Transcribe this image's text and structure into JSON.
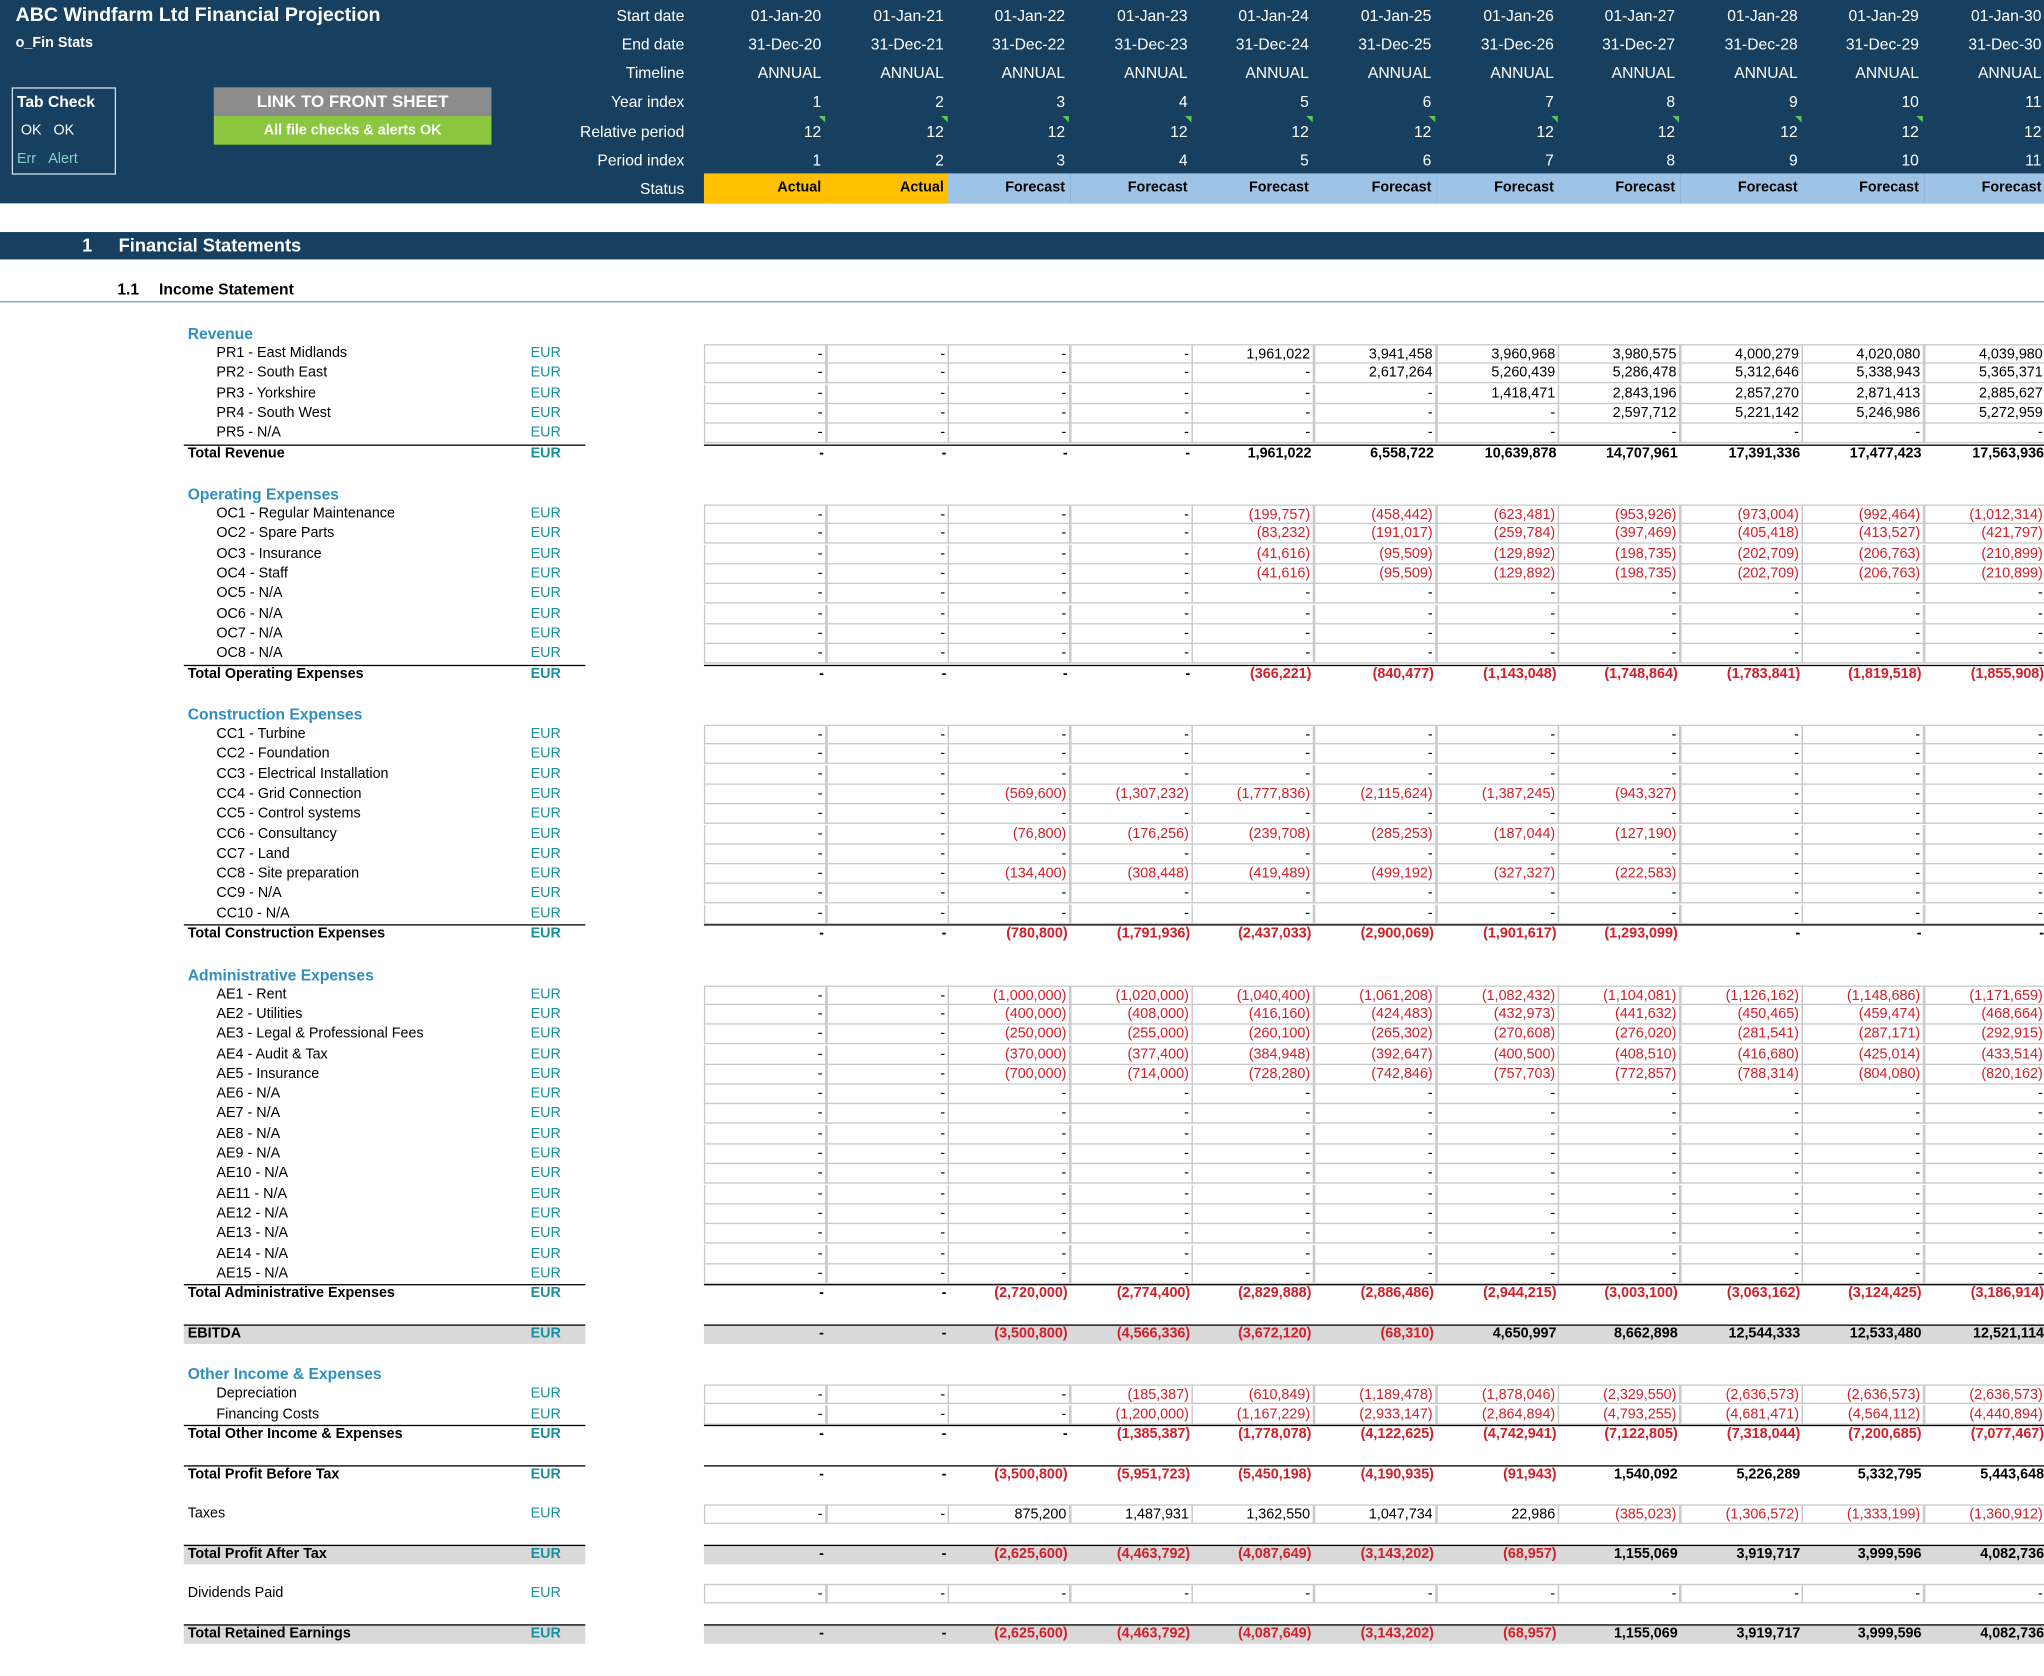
{
  "title": "ABC Windfarm Ltd Financial Projection",
  "subtitle": "o_Fin Stats",
  "tab_check": {
    "title": "Tab Check",
    "ok1": "OK",
    "ok2": "OK",
    "err": "Err",
    "alert": "Alert"
  },
  "link_button": "LINK TO FRONT SHEET",
  "checks_status": "All file checks & alerts OK",
  "colors": {
    "header_bg": "#173f5f",
    "actual": "#ffc000",
    "forecast": "#9dc3e6",
    "negative": "#d0202a",
    "group_heading": "#2f8fbf",
    "unit": "#1a8fa0"
  },
  "timeline_labels": {
    "start_date": "Start date",
    "end_date": "End date",
    "timeline": "Timeline",
    "year_index": "Year index",
    "relative_period": "Relative period",
    "period_index": "Period index",
    "status": "Status"
  },
  "columns": [
    {
      "start": "01-Jan-20",
      "end": "31-Dec-20",
      "timeline": "ANNUAL",
      "year": "1",
      "rel": "12",
      "period": "1",
      "status": "Actual"
    },
    {
      "start": "01-Jan-21",
      "end": "31-Dec-21",
      "timeline": "ANNUAL",
      "year": "2",
      "rel": "12",
      "period": "2",
      "status": "Actual"
    },
    {
      "start": "01-Jan-22",
      "end": "31-Dec-22",
      "timeline": "ANNUAL",
      "year": "3",
      "rel": "12",
      "period": "3",
      "status": "Forecast"
    },
    {
      "start": "01-Jan-23",
      "end": "31-Dec-23",
      "timeline": "ANNUAL",
      "year": "4",
      "rel": "12",
      "period": "4",
      "status": "Forecast"
    },
    {
      "start": "01-Jan-24",
      "end": "31-Dec-24",
      "timeline": "ANNUAL",
      "year": "5",
      "rel": "12",
      "period": "5",
      "status": "Forecast"
    },
    {
      "start": "01-Jan-25",
      "end": "31-Dec-25",
      "timeline": "ANNUAL",
      "year": "6",
      "rel": "12",
      "period": "6",
      "status": "Forecast"
    },
    {
      "start": "01-Jan-26",
      "end": "31-Dec-26",
      "timeline": "ANNUAL",
      "year": "7",
      "rel": "12",
      "period": "7",
      "status": "Forecast"
    },
    {
      "start": "01-Jan-27",
      "end": "31-Dec-27",
      "timeline": "ANNUAL",
      "year": "8",
      "rel": "12",
      "period": "8",
      "status": "Forecast"
    },
    {
      "start": "01-Jan-28",
      "end": "31-Dec-28",
      "timeline": "ANNUAL",
      "year": "9",
      "rel": "12",
      "period": "9",
      "status": "Forecast"
    },
    {
      "start": "01-Jan-29",
      "end": "31-Dec-29",
      "timeline": "ANNUAL",
      "year": "10",
      "rel": "12",
      "period": "10",
      "status": "Forecast"
    },
    {
      "start": "01-Jan-30",
      "end": "31-Dec-30",
      "timeline": "ANNUAL",
      "year": "11",
      "rel": "12",
      "period": "11",
      "status": "Forecast"
    }
  ],
  "section": {
    "number": "1",
    "title": "Financial Statements"
  },
  "subsection": {
    "number": "1.1",
    "title": "Income Statement"
  },
  "rows": [
    {
      "type": "heading",
      "label": "Revenue"
    },
    {
      "type": "item",
      "label": "PR1 - East Midlands",
      "unit": "EUR",
      "values": [
        "-",
        "-",
        "-",
        "-",
        "1,961,022",
        "3,941,458",
        "3,960,968",
        "3,980,575",
        "4,000,279",
        "4,020,080",
        "4,039,980"
      ]
    },
    {
      "type": "item",
      "label": "PR2 - South East",
      "unit": "EUR",
      "values": [
        "-",
        "-",
        "-",
        "-",
        "-",
        "2,617,264",
        "5,260,439",
        "5,286,478",
        "5,312,646",
        "5,338,943",
        "5,365,371"
      ]
    },
    {
      "type": "item",
      "label": "PR3 - Yorkshire",
      "unit": "EUR",
      "values": [
        "-",
        "-",
        "-",
        "-",
        "-",
        "-",
        "1,418,471",
        "2,843,196",
        "2,857,270",
        "2,871,413",
        "2,885,627"
      ]
    },
    {
      "type": "item",
      "label": "PR4 - South West",
      "unit": "EUR",
      "values": [
        "-",
        "-",
        "-",
        "-",
        "-",
        "-",
        "-",
        "2,597,712",
        "5,221,142",
        "5,246,986",
        "5,272,959"
      ]
    },
    {
      "type": "item",
      "label": "PR5 - N/A",
      "unit": "EUR",
      "values": [
        "-",
        "-",
        "-",
        "-",
        "-",
        "-",
        "-",
        "-",
        "-",
        "-",
        "-"
      ]
    },
    {
      "type": "total",
      "label": "Total Revenue",
      "unit": "EUR",
      "values": [
        "-",
        "-",
        "-",
        "-",
        "1,961,022",
        "6,558,722",
        "10,639,878",
        "14,707,961",
        "17,391,336",
        "17,477,423",
        "17,563,936"
      ]
    },
    {
      "type": "gap"
    },
    {
      "type": "heading",
      "label": "Operating Expenses"
    },
    {
      "type": "item",
      "label": "OC1 - Regular Maintenance",
      "unit": "EUR",
      "values": [
        "-",
        "-",
        "-",
        "-",
        "(199,757)",
        "(458,442)",
        "(623,481)",
        "(953,926)",
        "(973,004)",
        "(992,464)",
        "(1,012,314)"
      ]
    },
    {
      "type": "item",
      "label": "OC2 - Spare Parts",
      "unit": "EUR",
      "values": [
        "-",
        "-",
        "-",
        "-",
        "(83,232)",
        "(191,017)",
        "(259,784)",
        "(397,469)",
        "(405,418)",
        "(413,527)",
        "(421,797)"
      ]
    },
    {
      "type": "item",
      "label": "OC3 - Insurance",
      "unit": "EUR",
      "values": [
        "-",
        "-",
        "-",
        "-",
        "(41,616)",
        "(95,509)",
        "(129,892)",
        "(198,735)",
        "(202,709)",
        "(206,763)",
        "(210,899)"
      ]
    },
    {
      "type": "item",
      "label": "OC4 - Staff",
      "unit": "EUR",
      "values": [
        "-",
        "-",
        "-",
        "-",
        "(41,616)",
        "(95,509)",
        "(129,892)",
        "(198,735)",
        "(202,709)",
        "(206,763)",
        "(210,899)"
      ]
    },
    {
      "type": "item",
      "label": "OC5 - N/A",
      "unit": "EUR",
      "values": [
        "-",
        "-",
        "-",
        "-",
        "-",
        "-",
        "-",
        "-",
        "-",
        "-",
        "-"
      ]
    },
    {
      "type": "item",
      "label": "OC6 - N/A",
      "unit": "EUR",
      "values": [
        "-",
        "-",
        "-",
        "-",
        "-",
        "-",
        "-",
        "-",
        "-",
        "-",
        "-"
      ]
    },
    {
      "type": "item",
      "label": "OC7 - N/A",
      "unit": "EUR",
      "values": [
        "-",
        "-",
        "-",
        "-",
        "-",
        "-",
        "-",
        "-",
        "-",
        "-",
        "-"
      ]
    },
    {
      "type": "item",
      "label": "OC8 - N/A",
      "unit": "EUR",
      "values": [
        "-",
        "-",
        "-",
        "-",
        "-",
        "-",
        "-",
        "-",
        "-",
        "-",
        "-"
      ]
    },
    {
      "type": "total",
      "label": "Total Operating Expenses",
      "unit": "EUR",
      "values": [
        "-",
        "-",
        "-",
        "-",
        "(366,221)",
        "(840,477)",
        "(1,143,048)",
        "(1,748,864)",
        "(1,783,841)",
        "(1,819,518)",
        "(1,855,908)"
      ]
    },
    {
      "type": "gap"
    },
    {
      "type": "heading",
      "label": "Construction Expenses"
    },
    {
      "type": "item",
      "label": "CC1 - Turbine",
      "unit": "EUR",
      "values": [
        "-",
        "-",
        "-",
        "-",
        "-",
        "-",
        "-",
        "-",
        "-",
        "-",
        "-"
      ]
    },
    {
      "type": "item",
      "label": "CC2 - Foundation",
      "unit": "EUR",
      "values": [
        "-",
        "-",
        "-",
        "-",
        "-",
        "-",
        "-",
        "-",
        "-",
        "-",
        "-"
      ]
    },
    {
      "type": "item",
      "label": "CC3 - Electrical Installation",
      "unit": "EUR",
      "values": [
        "-",
        "-",
        "-",
        "-",
        "-",
        "-",
        "-",
        "-",
        "-",
        "-",
        "-"
      ]
    },
    {
      "type": "item",
      "label": "CC4 - Grid Connection",
      "unit": "EUR",
      "values": [
        "-",
        "-",
        "(569,600)",
        "(1,307,232)",
        "(1,777,836)",
        "(2,115,624)",
        "(1,387,245)",
        "(943,327)",
        "-",
        "-",
        "-"
      ]
    },
    {
      "type": "item",
      "label": "CC5 - Control systems",
      "unit": "EUR",
      "values": [
        "-",
        "-",
        "-",
        "-",
        "-",
        "-",
        "-",
        "-",
        "-",
        "-",
        "-"
      ]
    },
    {
      "type": "item",
      "label": "CC6 - Consultancy",
      "unit": "EUR",
      "values": [
        "-",
        "-",
        "(76,800)",
        "(176,256)",
        "(239,708)",
        "(285,253)",
        "(187,044)",
        "(127,190)",
        "-",
        "-",
        "-"
      ]
    },
    {
      "type": "item",
      "label": "CC7 - Land",
      "unit": "EUR",
      "values": [
        "-",
        "-",
        "-",
        "-",
        "-",
        "-",
        "-",
        "-",
        "-",
        "-",
        "-"
      ]
    },
    {
      "type": "item",
      "label": "CC8 - Site preparation",
      "unit": "EUR",
      "values": [
        "-",
        "-",
        "(134,400)",
        "(308,448)",
        "(419,489)",
        "(499,192)",
        "(327,327)",
        "(222,583)",
        "-",
        "-",
        "-"
      ]
    },
    {
      "type": "item",
      "label": "CC9 - N/A",
      "unit": "EUR",
      "values": [
        "-",
        "-",
        "-",
        "-",
        "-",
        "-",
        "-",
        "-",
        "-",
        "-",
        "-"
      ]
    },
    {
      "type": "item",
      "label": "CC10 - N/A",
      "unit": "EUR",
      "values": [
        "-",
        "-",
        "-",
        "-",
        "-",
        "-",
        "-",
        "-",
        "-",
        "-",
        "-"
      ]
    },
    {
      "type": "total",
      "label": "Total Construction Expenses",
      "unit": "EUR",
      "values": [
        "-",
        "-",
        "(780,800)",
        "(1,791,936)",
        "(2,437,033)",
        "(2,900,069)",
        "(1,901,617)",
        "(1,293,099)",
        "-",
        "-",
        "-"
      ]
    },
    {
      "type": "gap"
    },
    {
      "type": "heading",
      "label": "Administrative Expenses"
    },
    {
      "type": "item",
      "label": "AE1 - Rent",
      "unit": "EUR",
      "values": [
        "-",
        "-",
        "(1,000,000)",
        "(1,020,000)",
        "(1,040,400)",
        "(1,061,208)",
        "(1,082,432)",
        "(1,104,081)",
        "(1,126,162)",
        "(1,148,686)",
        "(1,171,659)"
      ]
    },
    {
      "type": "item",
      "label": "AE2 - Utilities",
      "unit": "EUR",
      "values": [
        "-",
        "-",
        "(400,000)",
        "(408,000)",
        "(416,160)",
        "(424,483)",
        "(432,973)",
        "(441,632)",
        "(450,465)",
        "(459,474)",
        "(468,664)"
      ]
    },
    {
      "type": "item",
      "label": "AE3 - Legal & Professional Fees",
      "unit": "EUR",
      "values": [
        "-",
        "-",
        "(250,000)",
        "(255,000)",
        "(260,100)",
        "(265,302)",
        "(270,608)",
        "(276,020)",
        "(281,541)",
        "(287,171)",
        "(292,915)"
      ]
    },
    {
      "type": "item",
      "label": "AE4 - Audit & Tax",
      "unit": "EUR",
      "values": [
        "-",
        "-",
        "(370,000)",
        "(377,400)",
        "(384,948)",
        "(392,647)",
        "(400,500)",
        "(408,510)",
        "(416,680)",
        "(425,014)",
        "(433,514)"
      ]
    },
    {
      "type": "item",
      "label": "AE5 - Insurance",
      "unit": "EUR",
      "values": [
        "-",
        "-",
        "(700,000)",
        "(714,000)",
        "(728,280)",
        "(742,846)",
        "(757,703)",
        "(772,857)",
        "(788,314)",
        "(804,080)",
        "(820,162)"
      ]
    },
    {
      "type": "item",
      "label": "AE6 - N/A",
      "unit": "EUR",
      "values": [
        "-",
        "-",
        "-",
        "-",
        "-",
        "-",
        "-",
        "-",
        "-",
        "-",
        "-"
      ]
    },
    {
      "type": "item",
      "label": "AE7 - N/A",
      "unit": "EUR",
      "values": [
        "-",
        "-",
        "-",
        "-",
        "-",
        "-",
        "-",
        "-",
        "-",
        "-",
        "-"
      ]
    },
    {
      "type": "item",
      "label": "AE8 - N/A",
      "unit": "EUR",
      "values": [
        "-",
        "-",
        "-",
        "-",
        "-",
        "-",
        "-",
        "-",
        "-",
        "-",
        "-"
      ]
    },
    {
      "type": "item",
      "label": "AE9 - N/A",
      "unit": "EUR",
      "values": [
        "-",
        "-",
        "-",
        "-",
        "-",
        "-",
        "-",
        "-",
        "-",
        "-",
        "-"
      ]
    },
    {
      "type": "item",
      "label": "AE10 - N/A",
      "unit": "EUR",
      "values": [
        "-",
        "-",
        "-",
        "-",
        "-",
        "-",
        "-",
        "-",
        "-",
        "-",
        "-"
      ]
    },
    {
      "type": "item",
      "label": "AE11 - N/A",
      "unit": "EUR",
      "values": [
        "-",
        "-",
        "-",
        "-",
        "-",
        "-",
        "-",
        "-",
        "-",
        "-",
        "-"
      ]
    },
    {
      "type": "item",
      "label": "AE12 - N/A",
      "unit": "EUR",
      "values": [
        "-",
        "-",
        "-",
        "-",
        "-",
        "-",
        "-",
        "-",
        "-",
        "-",
        "-"
      ]
    },
    {
      "type": "item",
      "label": "AE13 - N/A",
      "unit": "EUR",
      "values": [
        "-",
        "-",
        "-",
        "-",
        "-",
        "-",
        "-",
        "-",
        "-",
        "-",
        "-"
      ]
    },
    {
      "type": "item",
      "label": "AE14 - N/A",
      "unit": "EUR",
      "values": [
        "-",
        "-",
        "-",
        "-",
        "-",
        "-",
        "-",
        "-",
        "-",
        "-",
        "-"
      ]
    },
    {
      "type": "item",
      "label": "AE15 - N/A",
      "unit": "EUR",
      "values": [
        "-",
        "-",
        "-",
        "-",
        "-",
        "-",
        "-",
        "-",
        "-",
        "-",
        "-"
      ]
    },
    {
      "type": "total",
      "label": "Total Administrative Expenses",
      "unit": "EUR",
      "values": [
        "-",
        "-",
        "(2,720,000)",
        "(2,774,400)",
        "(2,829,888)",
        "(2,886,486)",
        "(2,944,215)",
        "(3,003,100)",
        "(3,063,162)",
        "(3,124,425)",
        "(3,186,914)"
      ]
    },
    {
      "type": "gap"
    },
    {
      "type": "grey",
      "label": "EBITDA",
      "unit": "EUR",
      "values": [
        "-",
        "-",
        "(3,500,800)",
        "(4,566,336)",
        "(3,672,120)",
        "(68,310)",
        "4,650,997",
        "8,662,898",
        "12,544,333",
        "12,533,480",
        "12,521,114"
      ]
    },
    {
      "type": "gap"
    },
    {
      "type": "heading",
      "label": "Other Income & Expenses"
    },
    {
      "type": "item",
      "label": "Depreciation",
      "unit": "EUR",
      "values": [
        "-",
        "-",
        "-",
        "(185,387)",
        "(610,849)",
        "(1,189,478)",
        "(1,878,046)",
        "(2,329,550)",
        "(2,636,573)",
        "(2,636,573)",
        "(2,636,573)"
      ]
    },
    {
      "type": "item",
      "label": "Financing Costs",
      "unit": "EUR",
      "values": [
        "-",
        "-",
        "-",
        "(1,200,000)",
        "(1,167,229)",
        "(2,933,147)",
        "(2,864,894)",
        "(4,793,255)",
        "(4,681,471)",
        "(4,564,112)",
        "(4,440,894)"
      ]
    },
    {
      "type": "total",
      "label": "Total Other Income & Expenses",
      "unit": "EUR",
      "values": [
        "-",
        "-",
        "-",
        "(1,385,387)",
        "(1,778,078)",
        "(4,122,625)",
        "(4,742,941)",
        "(7,122,805)",
        "(7,318,044)",
        "(7,200,685)",
        "(7,077,467)"
      ]
    },
    {
      "type": "gap"
    },
    {
      "type": "total",
      "label": "Total Profit Before Tax",
      "unit": "EUR",
      "values": [
        "-",
        "-",
        "(3,500,800)",
        "(5,951,723)",
        "(5,450,198)",
        "(4,190,935)",
        "(91,943)",
        "1,540,092",
        "5,226,289",
        "5,332,795",
        "5,443,648"
      ]
    },
    {
      "type": "gap"
    },
    {
      "type": "single",
      "label": "Taxes",
      "unit": "EUR",
      "values": [
        "-",
        "-",
        "875,200",
        "1,487,931",
        "1,362,550",
        "1,047,734",
        "22,986",
        "(385,023)",
        "(1,306,572)",
        "(1,333,199)",
        "(1,360,912)"
      ]
    },
    {
      "type": "gap"
    },
    {
      "type": "grey",
      "label": "Total Profit After Tax",
      "unit": "EUR",
      "values": [
        "-",
        "-",
        "(2,625,600)",
        "(4,463,792)",
        "(4,087,649)",
        "(3,143,202)",
        "(68,957)",
        "1,155,069",
        "3,919,717",
        "3,999,596",
        "4,082,736"
      ]
    },
    {
      "type": "gap"
    },
    {
      "type": "single",
      "label": "Dividends Paid",
      "unit": "EUR",
      "values": [
        "-",
        "-",
        "-",
        "-",
        "-",
        "-",
        "-",
        "-",
        "-",
        "-",
        "-"
      ]
    },
    {
      "type": "gap"
    },
    {
      "type": "grey",
      "label": "Total Retained Earnings",
      "unit": "EUR",
      "values": [
        "-",
        "-",
        "(2,625,600)",
        "(4,463,792)",
        "(4,087,649)",
        "(3,143,202)",
        "(68,957)",
        "1,155,069",
        "3,919,717",
        "3,999,596",
        "4,082,736"
      ]
    }
  ]
}
